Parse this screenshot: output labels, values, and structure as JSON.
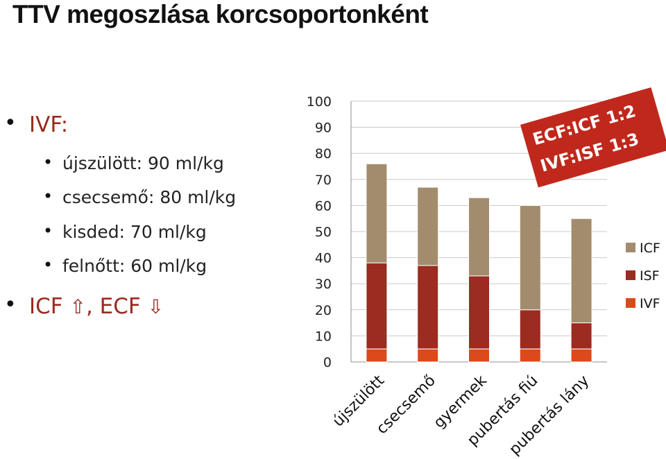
{
  "title": "TTV megoszlása korcsoportonként",
  "bullets": {
    "ivf_label": "IVF:",
    "sub": [
      "újszülött: 90 ml/kg",
      "csecsemő: 80 ml/kg",
      "kisded: 70 ml/kg",
      "felnőtt: 60 ml/kg"
    ],
    "icf_ecf_icf": "ICF",
    "icf_ecf_mid": ", ECF",
    "up_arrow": "⇧",
    "down_arrow": "⇩",
    "bullet_glyph": "•"
  },
  "callout": {
    "line1": "ECF:ICF   1:2",
    "line2": "IVF:ISF     1:3",
    "color": "#c0281c"
  },
  "chart_data": {
    "type": "bar",
    "stacked": true,
    "categories": [
      "újszülött",
      "csecsemő",
      "gyermek",
      "pubertás fiú",
      "pubertás lány"
    ],
    "series": [
      {
        "name": "IVF",
        "color": "#dc4a1b",
        "values": [
          5,
          5,
          5,
          5,
          5
        ]
      },
      {
        "name": "ISF",
        "color": "#9c2b22",
        "values": [
          33,
          32,
          28,
          15,
          10
        ]
      },
      {
        "name": "ICF",
        "color": "#a38c6e",
        "values": [
          38,
          30,
          30,
          40,
          40
        ]
      }
    ],
    "ylim": [
      0,
      100
    ],
    "yticks": [
      "0",
      "10",
      "20",
      "30",
      "40",
      "50",
      "60",
      "70",
      "80",
      "90",
      "100"
    ],
    "grid": true,
    "legend": "right",
    "legend_order": [
      "ICF",
      "ISF",
      "IVF"
    ]
  }
}
